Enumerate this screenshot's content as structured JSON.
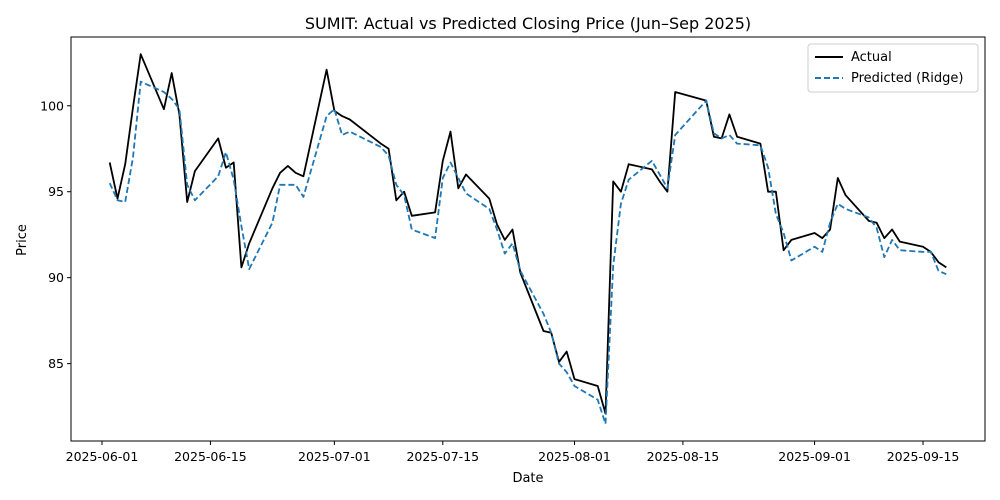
{
  "chart_data": {
    "type": "line",
    "title": "SUMIT: Actual vs Predicted Closing Price (Jun–Sep 2025)",
    "xlabel": "Date",
    "ylabel": "Price",
    "xlim": [
      "2025-05-28",
      "2025-09-23"
    ],
    "ylim": [
      80.5,
      104
    ],
    "grid": false,
    "legend_position": "top-right",
    "x_ticks": [
      "2025-06-01",
      "2025-06-15",
      "2025-07-01",
      "2025-07-15",
      "2025-08-01",
      "2025-08-15",
      "2025-09-01",
      "2025-09-15"
    ],
    "y_ticks": [
      85,
      90,
      95,
      100
    ],
    "x": [
      "2025-06-02",
      "2025-06-03",
      "2025-06-04",
      "2025-06-05",
      "2025-06-06",
      "2025-06-09",
      "2025-06-10",
      "2025-06-11",
      "2025-06-12",
      "2025-06-13",
      "2025-06-16",
      "2025-06-17",
      "2025-06-18",
      "2025-06-19",
      "2025-06-20",
      "2025-06-23",
      "2025-06-24",
      "2025-06-25",
      "2025-06-26",
      "2025-06-27",
      "2025-06-30",
      "2025-07-01",
      "2025-07-02",
      "2025-07-03",
      "2025-07-07",
      "2025-07-08",
      "2025-07-09",
      "2025-07-10",
      "2025-07-11",
      "2025-07-14",
      "2025-07-15",
      "2025-07-16",
      "2025-07-17",
      "2025-07-18",
      "2025-07-21",
      "2025-07-22",
      "2025-07-23",
      "2025-07-24",
      "2025-07-25",
      "2025-07-28",
      "2025-07-29",
      "2025-07-30",
      "2025-07-31",
      "2025-08-01",
      "2025-08-04",
      "2025-08-05",
      "2025-08-06",
      "2025-08-07",
      "2025-08-08",
      "2025-08-11",
      "2025-08-12",
      "2025-08-13",
      "2025-08-14",
      "2025-08-18",
      "2025-08-19",
      "2025-08-20",
      "2025-08-21",
      "2025-08-22",
      "2025-08-25",
      "2025-08-26",
      "2025-08-27",
      "2025-08-28",
      "2025-08-29",
      "2025-09-01",
      "2025-09-02",
      "2025-09-03",
      "2025-09-04",
      "2025-09-05",
      "2025-09-08",
      "2025-09-09",
      "2025-09-10",
      "2025-09-11",
      "2025-09-12",
      "2025-09-15",
      "2025-09-16",
      "2025-09-17",
      "2025-09-18"
    ],
    "series": [
      {
        "name": "Actual",
        "color": "#000000",
        "style": "solid",
        "values": [
          96.7,
          94.6,
          96.6,
          99.9,
          103.0,
          99.8,
          101.9,
          99.5,
          94.4,
          96.2,
          98.1,
          96.4,
          96.7,
          90.6,
          92.0,
          95.2,
          96.1,
          96.5,
          96.1,
          95.9,
          102.1,
          99.7,
          99.4,
          99.2,
          97.8,
          97.5,
          94.5,
          95.0,
          93.6,
          93.8,
          96.8,
          98.5,
          95.2,
          96.0,
          94.6,
          93.1,
          92.2,
          92.8,
          90.3,
          86.9,
          86.8,
          85.1,
          85.7,
          84.1,
          83.7,
          82.1,
          95.6,
          95.0,
          96.6,
          96.3,
          95.6,
          95.0,
          100.8,
          100.3,
          98.2,
          98.1,
          99.5,
          98.2,
          97.8,
          95.0,
          95.0,
          91.6,
          92.2,
          92.6,
          92.3,
          92.8,
          95.8,
          94.8,
          93.3,
          93.2,
          92.3,
          92.8,
          92.1,
          91.8,
          91.5,
          90.9,
          90.6
        ]
      },
      {
        "name": "Predicted (Ridge)",
        "color": "#1f77b4",
        "style": "dashed",
        "values": [
          95.5,
          94.5,
          94.4,
          97.0,
          101.4,
          100.8,
          100.4,
          99.8,
          95.4,
          94.5,
          95.9,
          97.3,
          95.7,
          93.0,
          90.5,
          93.2,
          95.4,
          95.4,
          95.4,
          94.7,
          99.4,
          99.8,
          98.3,
          98.5,
          97.6,
          97.1,
          95.4,
          94.8,
          92.8,
          92.3,
          95.8,
          96.7,
          95.8,
          94.9,
          94.0,
          92.8,
          91.4,
          92.0,
          90.4,
          87.9,
          86.8,
          85.0,
          84.5,
          83.7,
          82.9,
          81.5,
          90.7,
          94.3,
          95.7,
          96.8,
          96.0,
          95.2,
          98.3,
          100.3,
          98.4,
          98.1,
          98.3,
          97.8,
          97.7,
          96.4,
          93.7,
          92.6,
          91.0,
          91.8,
          91.5,
          93.2,
          94.3,
          94.0,
          93.5,
          92.9,
          91.2,
          92.2,
          91.6,
          91.5,
          91.5,
          90.4,
          90.2
        ]
      }
    ]
  }
}
